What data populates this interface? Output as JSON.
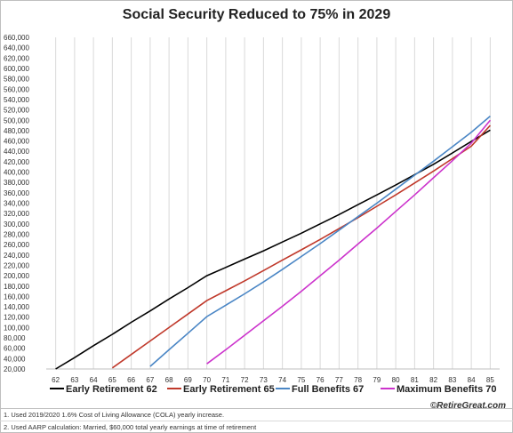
{
  "chart_data": {
    "type": "line",
    "title": "Social Security Reduced to 75% in 2029",
    "xlabel": "",
    "ylabel": "",
    "x": [
      62,
      63,
      64,
      65,
      66,
      67,
      68,
      69,
      70,
      71,
      72,
      73,
      74,
      75,
      76,
      77,
      78,
      79,
      80,
      81,
      82,
      83,
      84,
      85
    ],
    "y_ticks": [
      "20,000",
      "40,000",
      "60,000",
      "80,000",
      "100,000",
      "120,000",
      "140,000",
      "160,000",
      "180,000",
      "200,000",
      "220,000",
      "240,000",
      "260,000",
      "280,000",
      "300,000",
      "320,000",
      "340,000",
      "360,000",
      "380,000",
      "400,000",
      "420,000",
      "440,000",
      "460,000",
      "480,000",
      "500,000",
      "520,000",
      "540,000",
      "560,000",
      "580,000",
      "600,000",
      "620,000",
      "640,000",
      "660,000"
    ],
    "ylim": [
      20000,
      660000
    ],
    "grid": "vertical",
    "legend_position": "bottom",
    "series": [
      {
        "name": "Early Retirement 62",
        "color": "#000000",
        "x": [
          62,
          63,
          64,
          65,
          66,
          67,
          68,
          69,
          70,
          71,
          72,
          73,
          74,
          75,
          76,
          77,
          78,
          79,
          80,
          81,
          82,
          83,
          84,
          85
        ],
        "values": [
          20000,
          42000,
          65000,
          87000,
          110000,
          132000,
          155000,
          177000,
          200000,
          216000,
          232000,
          248000,
          265000,
          282000,
          300000,
          318000,
          337000,
          356000,
          375000,
          395000,
          415000,
          437000,
          459000,
          481000
        ]
      },
      {
        "name": "Early Retirement 65",
        "color": "#c0392b",
        "x": [
          65,
          66,
          67,
          68,
          69,
          70,
          71,
          72,
          73,
          74,
          75,
          76,
          77,
          78,
          79,
          80,
          81,
          82,
          83,
          84,
          85
        ],
        "values": [
          22000,
          48000,
          74000,
          100000,
          126000,
          152000,
          171000,
          190000,
          210000,
          230000,
          250000,
          270000,
          291000,
          312000,
          334000,
          356000,
          379000,
          402000,
          426000,
          450000,
          490000
        ]
      },
      {
        "name": "Full  Benefits 67",
        "color": "#4a86c5",
        "x": [
          67,
          68,
          69,
          70,
          71,
          72,
          73,
          74,
          75,
          76,
          77,
          78,
          79,
          80,
          81,
          82,
          83,
          84,
          85
        ],
        "values": [
          25000,
          57000,
          89000,
          121000,
          143000,
          165000,
          188000,
          212000,
          237000,
          262000,
          288000,
          314000,
          340000,
          367000,
          394000,
          421000,
          449000,
          477000,
          508000
        ]
      },
      {
        "name": "Maximum  Benefits 70",
        "color": "#cc33cc",
        "x": [
          70,
          71,
          72,
          73,
          74,
          75,
          76,
          77,
          78,
          79,
          80,
          81,
          82,
          83,
          84,
          85
        ],
        "values": [
          30000,
          57000,
          85000,
          113000,
          141000,
          170000,
          200000,
          230000,
          261000,
          292000,
          324000,
          356000,
          389000,
          422000,
          456000,
          500000
        ]
      }
    ]
  },
  "credit": "©RetireGreat.com",
  "notes": [
    "1. Used 2019/2020 1.6% Cost of Living Allowance (COLA) yearly increase.",
    "2. Used AARP calculation: Married, $60,000 total yearly earnings at time of retirement"
  ]
}
